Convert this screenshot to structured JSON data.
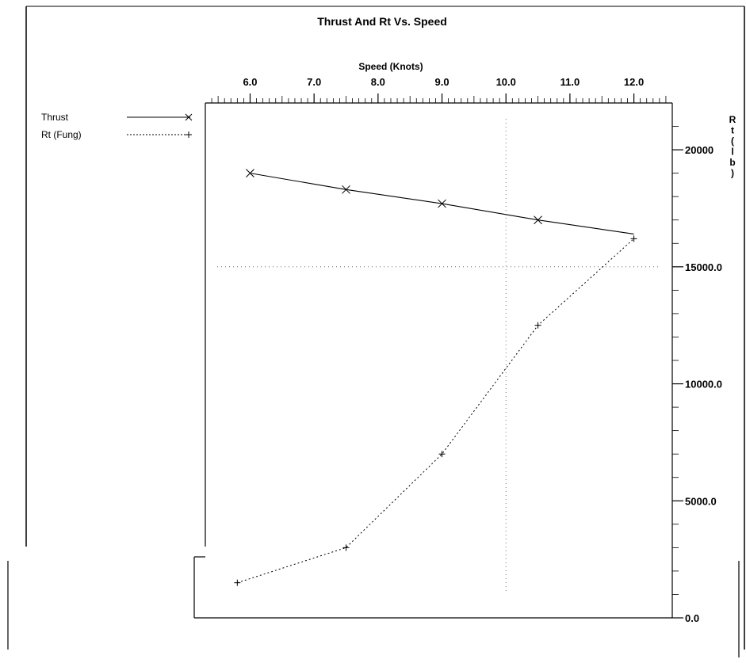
{
  "chart_data": {
    "type": "line",
    "title": "Thrust And Rt Vs. Speed",
    "xlabel": "Speed (Knots)",
    "ylabel": "Rt (lb)",
    "xlim": [
      5.3,
      12.6
    ],
    "ylim": [
      0,
      22000
    ],
    "x_ticks": [
      6.0,
      7.0,
      8.0,
      9.0,
      10.0,
      11.0,
      12.0
    ],
    "x_tick_labels": [
      "6.0",
      "7.0",
      "8.0",
      "9.0",
      "10.0",
      "11.0",
      "12.0"
    ],
    "y_ticks": [
      0,
      5000,
      10000,
      15000,
      20000
    ],
    "y_tick_labels": [
      "0.0",
      "5000.0",
      "10000.0",
      "15000.0",
      "20000"
    ],
    "grid": true,
    "legend_position": "top-left",
    "series": [
      {
        "name": "Thrust",
        "style": "solid",
        "marker": "x",
        "x": [
          6.0,
          7.5,
          9.0,
          10.5,
          12.0
        ],
        "y": [
          19000,
          18300,
          17700,
          17000,
          16400
        ]
      },
      {
        "name": "Rt (Fung)",
        "style": "dotted",
        "marker": "+",
        "x": [
          5.8,
          7.5,
          9.0,
          10.5,
          12.0
        ],
        "y": [
          1500,
          3000,
          7000,
          12500,
          16200
        ]
      }
    ]
  }
}
